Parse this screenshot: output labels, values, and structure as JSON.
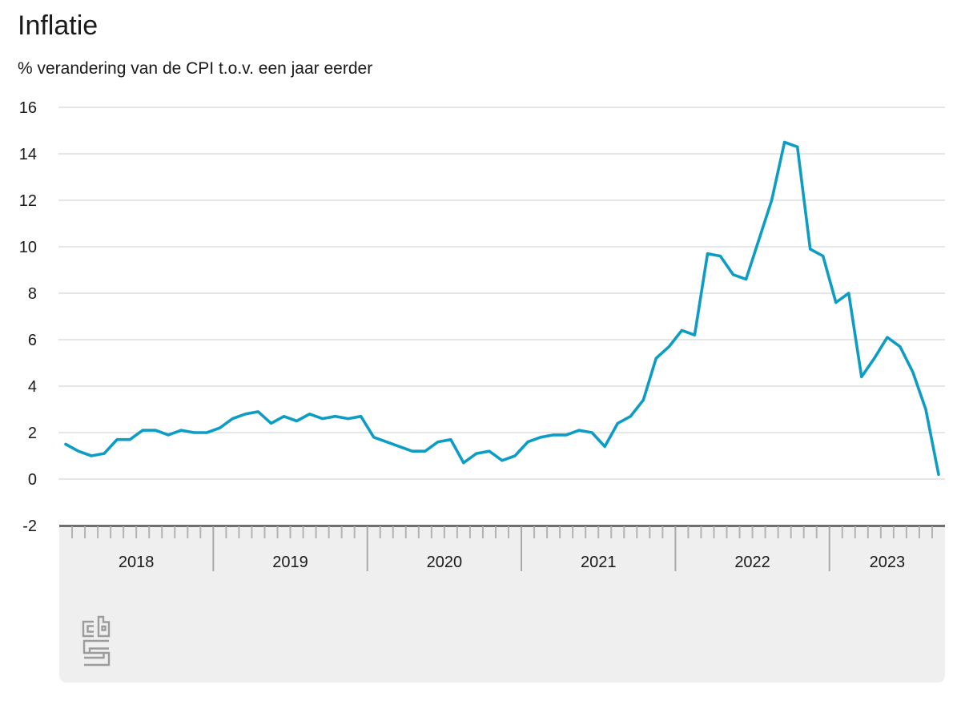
{
  "page": {
    "title": "Inflatie"
  },
  "header": {
    "title": "Inflatie",
    "subtitle": "% verandering van de CPI t.o.v. een jaar eerder"
  },
  "chart_data": {
    "type": "line",
    "title": "Inflatie",
    "subtitle": "% verandering van de CPI t.o.v. een jaar eerder",
    "x_unit": "month",
    "x_start": "2018-01",
    "x_end": "2023-09",
    "categories_years": [
      "2018",
      "2019",
      "2020",
      "2021",
      "2022",
      "2023"
    ],
    "series": [
      {
        "name": "Inflatie (CPI, % verandering t.o.v. een jaar eerder)",
        "by_year": [
          {
            "year": "2018",
            "values": [
              1.5,
              1.2,
              1.0,
              1.1,
              1.7,
              1.7,
              2.1,
              2.1,
              1.9,
              2.1,
              2.0,
              2.0
            ]
          },
          {
            "year": "2019",
            "values": [
              2.2,
              2.6,
              2.8,
              2.9,
              2.4,
              2.7,
              2.5,
              2.8,
              2.6,
              2.7,
              2.6,
              2.7
            ]
          },
          {
            "year": "2020",
            "values": [
              1.8,
              1.6,
              1.4,
              1.2,
              1.2,
              1.6,
              1.7,
              0.7,
              1.1,
              1.2,
              0.8,
              1.0
            ]
          },
          {
            "year": "2021",
            "values": [
              1.6,
              1.8,
              1.9,
              1.9,
              2.1,
              2.0,
              1.4,
              2.4,
              2.7,
              3.4,
              5.2,
              5.7
            ]
          },
          {
            "year": "2022",
            "values": [
              6.4,
              6.2,
              9.7,
              9.6,
              8.8,
              8.6,
              10.3,
              12.0,
              14.5,
              14.3,
              9.9,
              9.6
            ]
          },
          {
            "year": "2023",
            "values": [
              7.6,
              8.0,
              4.4,
              5.2,
              6.1,
              5.7,
              4.6,
              3.0,
              0.2
            ]
          }
        ]
      }
    ],
    "ylim": [
      -2,
      16
    ],
    "yticks": [
      16,
      14,
      12,
      10,
      8,
      6,
      4,
      2,
      0,
      -2
    ],
    "grid": true,
    "legend_position": "none"
  },
  "colors": {
    "background": "#ffffff",
    "grid": "#cccccc",
    "axis_band_fill": "#efefef",
    "axis_band_border": "#6e6e6e",
    "month_tick": "#b3b3b3",
    "year_divider": "#a9a9a9",
    "text": "#1a1a1a",
    "line": "#0d9dc4",
    "logo": "#9c9c9c"
  },
  "icons": {
    "logo": "cbs-logo-icon"
  }
}
